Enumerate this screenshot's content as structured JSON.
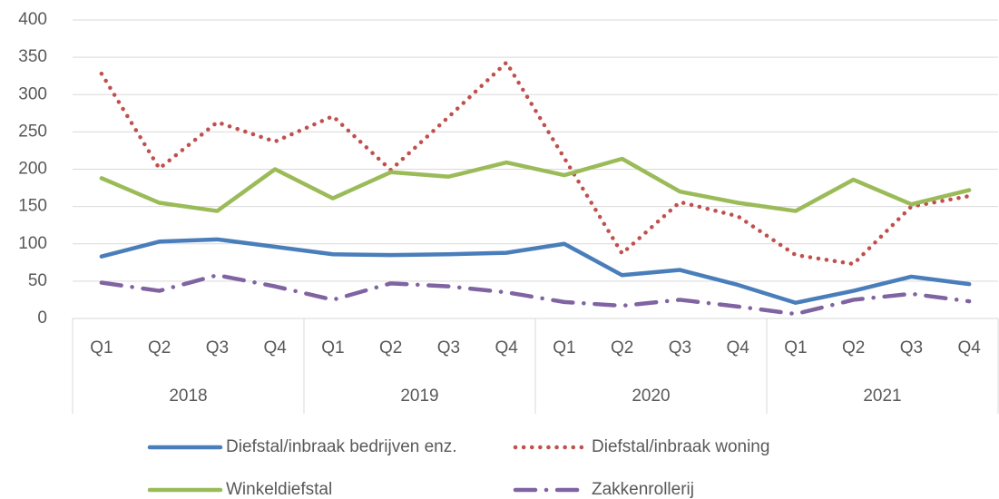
{
  "chart_data": {
    "type": "line",
    "categories": [
      "Q1",
      "Q2",
      "Q3",
      "Q4",
      "Q1",
      "Q2",
      "Q3",
      "Q4",
      "Q1",
      "Q2",
      "Q3",
      "Q4",
      "Q1",
      "Q2",
      "Q3",
      "Q4"
    ],
    "x_groups": [
      "2018",
      "2019",
      "2020",
      "2021"
    ],
    "series": [
      {
        "name": "Diefstal/inbraak bedrijven enz.",
        "color": "#4a7ebb",
        "style": "solid",
        "values": [
          83,
          103,
          106,
          96,
          86,
          85,
          86,
          88,
          100,
          58,
          65,
          45,
          21,
          37,
          56,
          46
        ]
      },
      {
        "name": "Diefstal/inbraak woning",
        "color": "#c0504d",
        "style": "dotted",
        "values": [
          328,
          201,
          263,
          237,
          271,
          199,
          270,
          343,
          215,
          87,
          156,
          137,
          85,
          73,
          150,
          164
        ]
      },
      {
        "name": "Winkeldiefstal",
        "color": "#9bbb59",
        "style": "solid",
        "values": [
          188,
          155,
          144,
          200,
          161,
          196,
          190,
          209,
          192,
          214,
          170,
          155,
          144,
          186,
          153,
          172
        ]
      },
      {
        "name": "Zakkenrollerij",
        "color": "#8064a2",
        "style": "dashdot",
        "values": [
          48,
          37,
          58,
          43,
          25,
          47,
          43,
          35,
          22,
          17,
          25,
          16,
          6,
          25,
          33,
          23
        ]
      }
    ],
    "ylim": [
      0,
      400
    ],
    "yticks": [
      0,
      50,
      100,
      150,
      200,
      250,
      300,
      350,
      400
    ],
    "grid": true,
    "legend": "bottom"
  }
}
